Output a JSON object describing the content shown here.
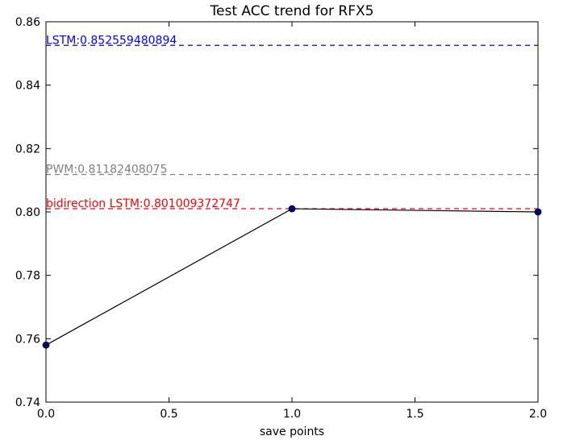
{
  "chart_data": {
    "type": "line",
    "title": "Test ACC trend for RFX5",
    "xlabel": "save points",
    "ylabel": "",
    "xlim": [
      0.0,
      2.0
    ],
    "ylim": [
      0.74,
      0.86
    ],
    "x_ticks": [
      "0.0",
      "0.5",
      "1.0",
      "1.5",
      "2.0"
    ],
    "y_ticks": [
      "0.74",
      "0.76",
      "0.78",
      "0.80",
      "0.82",
      "0.84",
      "0.86"
    ],
    "grid": false,
    "series": [
      {
        "x": [
          0,
          1,
          2
        ],
        "values": [
          0.758,
          0.801,
          0.8
        ],
        "line_color": "#000000",
        "marker_color": "#00008b"
      }
    ],
    "reference_lines": [
      {
        "label": "LSTM:0.852559480894",
        "value": 0.852559480894,
        "color": "#0000ff"
      },
      {
        "label": "PWM:0.81182408075",
        "value": 0.81182408075,
        "color": "#808080"
      },
      {
        "label": "bidirection LSTM:0.801009372747",
        "value": 0.801009372747,
        "color": "#ff0000"
      }
    ]
  }
}
